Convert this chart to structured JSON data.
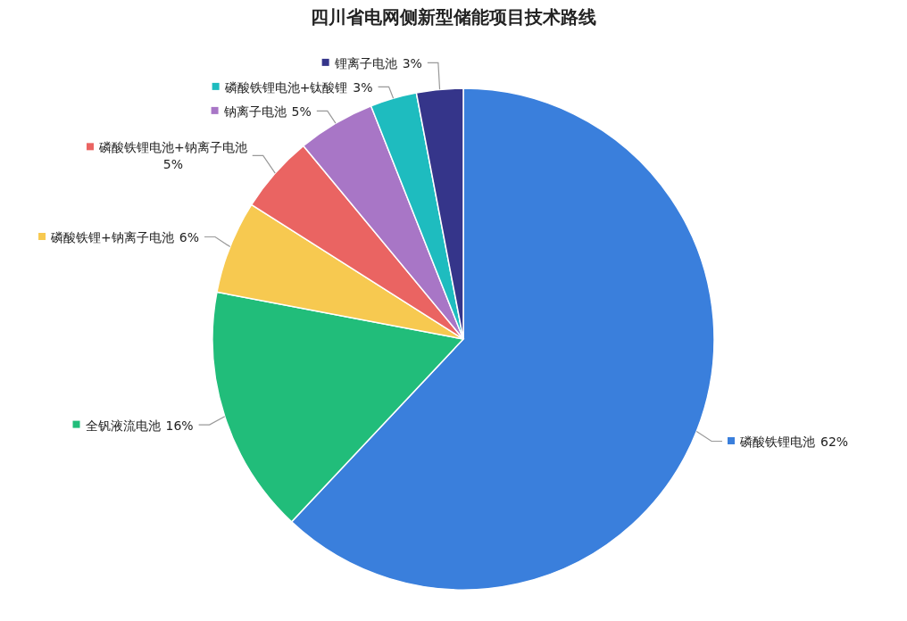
{
  "chart_data": {
    "type": "pie",
    "title": "四川省电网侧新型储能项目技术路线",
    "categories": [
      "磷酸铁锂电池",
      "全钒液流电池",
      "磷酸铁锂+钠离子电池",
      "磷酸铁锂电池+钠离子电池",
      "钠离子电池",
      "磷酸铁锂电池+钛酸锂",
      "锂离子电池"
    ],
    "values": [
      62,
      16,
      6,
      5,
      5,
      3,
      3
    ],
    "value_labels": [
      "62%",
      "16%",
      "6%",
      "5%",
      "5%",
      "3%",
      "3%"
    ],
    "legend": "left",
    "colors": [
      "#3a7fdc",
      "#21bd7a",
      "#f7c950",
      "#ea6462",
      "#a876c6",
      "#1ebcbf",
      "#35358a"
    ]
  }
}
